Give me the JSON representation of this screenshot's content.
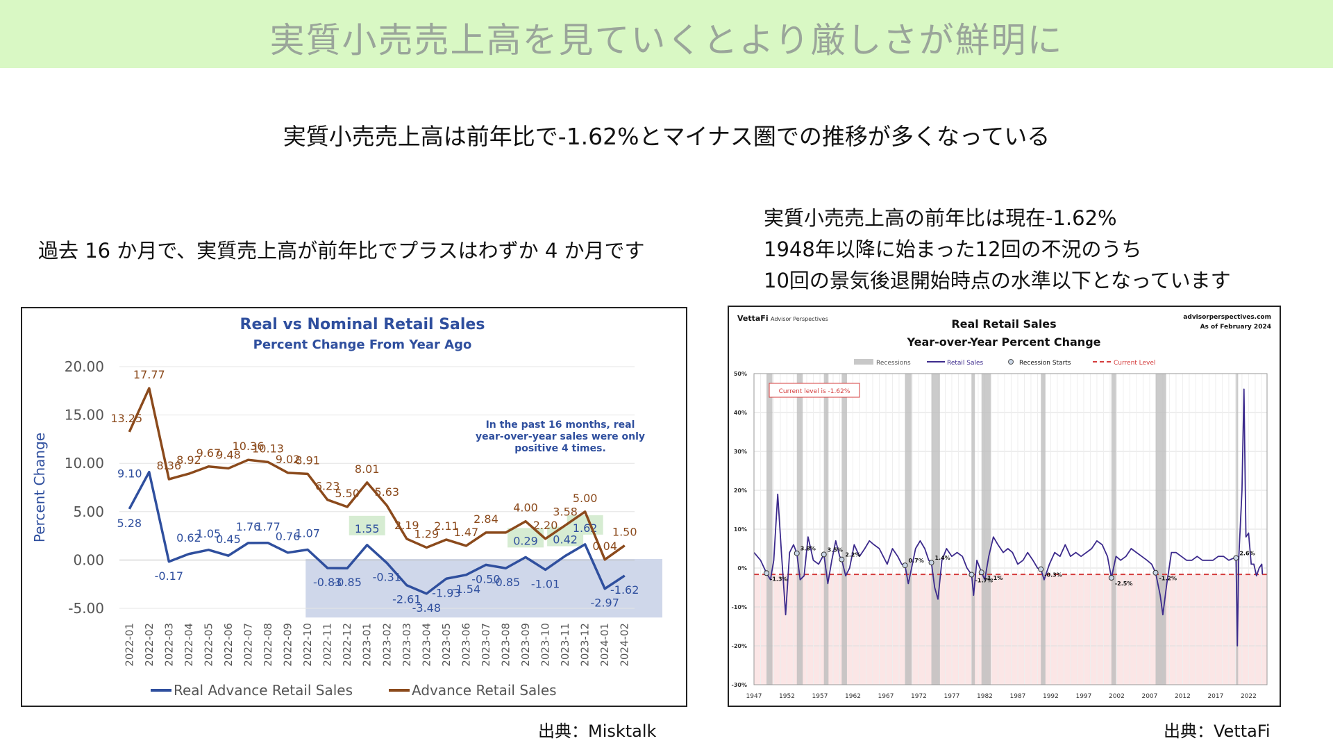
{
  "header": {
    "title": "実質小売売上高を見ていくとより厳しさが鮮明に"
  },
  "subtitle": "実質小売売上高は前年比で-1.62%とマイナス圏での推移が多くなっている",
  "left_note": "過去 16 か月で、実質売上高が前年比でプラスはわずか 4 か月です",
  "right_note": [
    "実質小売売上高の前年比は現在-1.62%",
    "1948年以降に始まった12回の不況のうち",
    "10回の景気後退開始時点の水準以下となっています"
  ],
  "sources": {
    "left": "出典：Misktalk",
    "right": "出典：VettaFi"
  },
  "chart_data": [
    {
      "type": "line",
      "title": "Real vs Nominal Retail Sales",
      "subtitle": "Percent Change From Year Ago",
      "ylabel": "Percent Change",
      "ylim": [
        -5,
        20
      ],
      "yticks": [
        "20.00",
        "15.00",
        "10.00",
        "5.00",
        "0.00",
        "-5.00"
      ],
      "categories": [
        "2022-01",
        "2022-02",
        "2022-03",
        "2022-04",
        "2022-05",
        "2022-06",
        "2022-07",
        "2022-08",
        "2022-09",
        "2022-10",
        "2022-11",
        "2022-12",
        "2023-01",
        "2023-02",
        "2023-03",
        "2023-04",
        "2023-05",
        "2023-06",
        "2023-07",
        "2023-08",
        "2023-09",
        "2023-10",
        "2023-11",
        "2023-12",
        "2024-01",
        "2024-02"
      ],
      "series": [
        {
          "name": "Real Advance Retail Sales",
          "color": "#2f4f9e",
          "values": [
            5.28,
            9.1,
            -0.17,
            0.62,
            1.05,
            0.45,
            1.76,
            1.77,
            0.76,
            1.07,
            -0.83,
            -0.85,
            1.55,
            -0.31,
            -2.61,
            -3.48,
            -1.93,
            -1.54,
            -0.5,
            -0.85,
            0.29,
            -1.01,
            0.42,
            1.62,
            -2.97,
            -1.62
          ],
          "labels": [
            "5.28",
            "9.10",
            "-0.17",
            "0.62",
            "1.05",
            "0.45",
            "1.76",
            "1.77",
            "0.76",
            "1.07",
            "-0.83",
            "-0.85",
            "1.55",
            "-0.31",
            "-2.61",
            "-3.48",
            "-1.93",
            "-1.54",
            "-0.50",
            "-0.85",
            "0.29",
            "-1.01",
            "0.42",
            "1.62",
            "-2.97",
            "-1.62"
          ]
        },
        {
          "name": "Advance Retail Sales",
          "color": "#8b4a1c",
          "values": [
            13.25,
            17.77,
            8.36,
            8.92,
            9.67,
            9.48,
            10.36,
            10.13,
            9.02,
            8.91,
            6.23,
            5.5,
            8.01,
            5.63,
            2.19,
            1.29,
            2.11,
            1.47,
            2.84,
            2.84,
            4.0,
            2.2,
            3.58,
            5.0,
            0.04,
            1.5
          ],
          "labels": [
            "13.25",
            "17.77",
            "8.36",
            "8.92",
            "9.67",
            "9.48",
            "10.36",
            "10.13",
            "9.02",
            "8.91",
            "6.23",
            "5.50",
            "8.01",
            "5.63",
            "2.19",
            "1.29",
            "2.11",
            "1.47",
            "2.84",
            "",
            "4.00",
            "2.20",
            "3.58",
            "5.00",
            "0.04",
            "1.50"
          ]
        }
      ],
      "annotation": [
        "In the past 16 months, real",
        "year-over-year sales were only",
        "positive 4 times."
      ]
    },
    {
      "type": "line",
      "brand": "VettaFi",
      "brand_sub": "Advisor Perspectives",
      "site": "advisorperspectives.com",
      "asof": "As of February 2024",
      "title": "Real Retail Sales",
      "subtitle": "Year-over-Year Percent Change",
      "legend": [
        "Recessions",
        "Retail Sales",
        "Recession Starts",
        "Current Level"
      ],
      "current_label": "Current level is -1.62%",
      "current_level": -1.62,
      "ylim": [
        -30,
        50
      ],
      "yticks": [
        "50%",
        "40%",
        "30%",
        "20%",
        "10%",
        "0%",
        "-10%",
        "-20%",
        "-30%"
      ],
      "xticks": [
        "1947",
        "1952",
        "1957",
        "1962",
        "1967",
        "1972",
        "1977",
        "1982",
        "1987",
        "1992",
        "1997",
        "2002",
        "2007",
        "2012",
        "2017",
        "2022"
      ],
      "recessions": [
        [
          1948.9,
          1949.8
        ],
        [
          1953.5,
          1954.4
        ],
        [
          1957.6,
          1958.3
        ],
        [
          1960.3,
          1961.1
        ],
        [
          1969.9,
          1970.9
        ],
        [
          1973.9,
          1975.2
        ],
        [
          1980.0,
          1980.5
        ],
        [
          1981.5,
          1982.9
        ],
        [
          1990.5,
          1991.2
        ],
        [
          2001.2,
          2001.9
        ],
        [
          2007.9,
          2009.5
        ],
        [
          2020.1,
          2020.3
        ]
      ],
      "recession_starts": [
        {
          "year": 1948.9,
          "value": -1.3,
          "label": "-1.3%"
        },
        {
          "year": 1953.5,
          "value": 3.8,
          "label": "3.8%"
        },
        {
          "year": 1957.6,
          "value": 3.5,
          "label": "3.5%"
        },
        {
          "year": 1960.3,
          "value": 2.2,
          "label": "2.2%"
        },
        {
          "year": 1969.9,
          "value": 0.7,
          "label": "0.7%"
        },
        {
          "year": 1973.9,
          "value": 1.4,
          "label": "1.4%"
        },
        {
          "year": 1980.0,
          "value": -1.7,
          "label": "-1.7%"
        },
        {
          "year": 1981.5,
          "value": -1.1,
          "label": "-1.1%"
        },
        {
          "year": 1990.5,
          "value": -0.3,
          "label": "-0.3%"
        },
        {
          "year": 2001.2,
          "value": -2.5,
          "label": "-2.5%"
        },
        {
          "year": 2007.9,
          "value": -1.2,
          "label": "-1.2%"
        },
        {
          "year": 2020.1,
          "value": 2.6,
          "label": "2.6%"
        }
      ],
      "series": [
        {
          "name": "Retail Sales",
          "color": "#3c2a8c",
          "points": [
            [
              1947.0,
              4
            ],
            [
              1948.0,
              2
            ],
            [
              1948.9,
              -1.3
            ],
            [
              1949.5,
              -3
            ],
            [
              1950.0,
              2
            ],
            [
              1950.6,
              19
            ],
            [
              1951.2,
              3
            ],
            [
              1951.8,
              -12
            ],
            [
              1952.4,
              4
            ],
            [
              1953.0,
              6
            ],
            [
              1953.5,
              3.8
            ],
            [
              1954.0,
              -3
            ],
            [
              1954.6,
              -2
            ],
            [
              1955.2,
              8
            ],
            [
              1956.0,
              2
            ],
            [
              1956.8,
              1
            ],
            [
              1957.6,
              3.5
            ],
            [
              1958.2,
              -4
            ],
            [
              1958.8,
              2
            ],
            [
              1959.4,
              7
            ],
            [
              1960.0,
              3
            ],
            [
              1960.3,
              2.2
            ],
            [
              1960.9,
              -2
            ],
            [
              1961.5,
              0
            ],
            [
              1962.2,
              6
            ],
            [
              1963.0,
              3
            ],
            [
              1963.8,
              5
            ],
            [
              1964.5,
              7
            ],
            [
              1965.2,
              6
            ],
            [
              1966.0,
              5
            ],
            [
              1966.6,
              3
            ],
            [
              1967.2,
              1
            ],
            [
              1968.0,
              5
            ],
            [
              1968.8,
              3
            ],
            [
              1969.4,
              1
            ],
            [
              1969.9,
              0.7
            ],
            [
              1970.4,
              -4
            ],
            [
              1970.9,
              0
            ],
            [
              1971.5,
              5
            ],
            [
              1972.2,
              7
            ],
            [
              1972.9,
              5
            ],
            [
              1973.5,
              2
            ],
            [
              1973.9,
              1.4
            ],
            [
              1974.4,
              -5
            ],
            [
              1974.9,
              -8
            ],
            [
              1975.5,
              2
            ],
            [
              1976.2,
              5
            ],
            [
              1977.0,
              3
            ],
            [
              1977.8,
              4
            ],
            [
              1978.6,
              3
            ],
            [
              1979.3,
              0
            ],
            [
              1980.0,
              -1.7
            ],
            [
              1980.3,
              -7
            ],
            [
              1980.8,
              2
            ],
            [
              1981.5,
              -1.1
            ],
            [
              1982.0,
              -3
            ],
            [
              1982.6,
              3
            ],
            [
              1983.3,
              8
            ],
            [
              1984.0,
              6
            ],
            [
              1984.8,
              4
            ],
            [
              1985.5,
              5
            ],
            [
              1986.2,
              4
            ],
            [
              1987.0,
              1
            ],
            [
              1987.8,
              2
            ],
            [
              1988.5,
              4
            ],
            [
              1989.3,
              2
            ],
            [
              1990.0,
              0
            ],
            [
              1990.5,
              -0.3
            ],
            [
              1991.0,
              -3
            ],
            [
              1991.8,
              1
            ],
            [
              1992.6,
              4
            ],
            [
              1993.4,
              3
            ],
            [
              1994.2,
              6
            ],
            [
              1995.0,
              3
            ],
            [
              1995.8,
              4
            ],
            [
              1996.6,
              3
            ],
            [
              1997.4,
              4
            ],
            [
              1998.2,
              5
            ],
            [
              1999.0,
              7
            ],
            [
              1999.8,
              6
            ],
            [
              2000.6,
              3
            ],
            [
              2001.2,
              -2.5
            ],
            [
              2001.9,
              3
            ],
            [
              2002.6,
              2
            ],
            [
              2003.4,
              3
            ],
            [
              2004.2,
              5
            ],
            [
              2005.0,
              4
            ],
            [
              2005.8,
              3
            ],
            [
              2006.6,
              2
            ],
            [
              2007.3,
              1
            ],
            [
              2007.9,
              -1.2
            ],
            [
              2008.6,
              -7
            ],
            [
              2009.0,
              -12
            ],
            [
              2009.6,
              -4
            ],
            [
              2010.3,
              4
            ],
            [
              2011.0,
              4
            ],
            [
              2011.8,
              3
            ],
            [
              2012.6,
              2
            ],
            [
              2013.4,
              2
            ],
            [
              2014.2,
              3
            ],
            [
              2015.0,
              2
            ],
            [
              2015.8,
              2
            ],
            [
              2016.6,
              2
            ],
            [
              2017.4,
              3
            ],
            [
              2018.2,
              3
            ],
            [
              2019.0,
              2
            ],
            [
              2019.8,
              2.6
            ],
            [
              2020.1,
              2.6
            ],
            [
              2020.3,
              -20
            ],
            [
              2020.5,
              2
            ],
            [
              2021.0,
              20
            ],
            [
              2021.3,
              46
            ],
            [
              2021.6,
              8
            ],
            [
              2022.0,
              9
            ],
            [
              2022.4,
              1
            ],
            [
              2022.8,
              1
            ],
            [
              2023.2,
              -2
            ],
            [
              2023.6,
              0
            ],
            [
              2024.0,
              1
            ],
            [
              2024.1,
              -1.62
            ]
          ]
        }
      ]
    }
  ]
}
